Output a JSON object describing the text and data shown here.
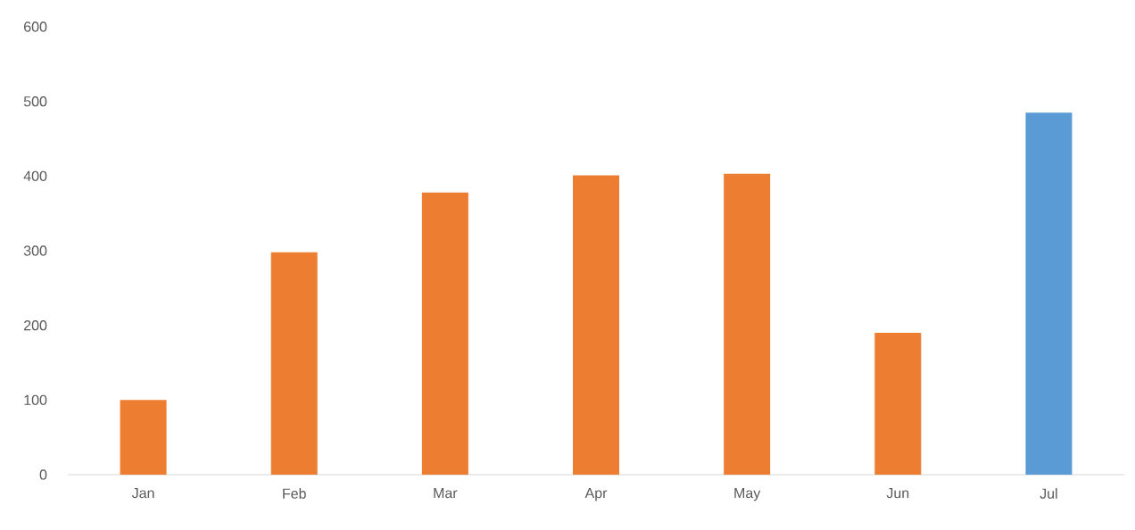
{
  "chart_data": {
    "type": "bar",
    "categories": [
      "Jan",
      "Feb",
      "Mar",
      "Apr",
      "May",
      "Jun",
      "Jul"
    ],
    "values": [
      100,
      298,
      378,
      401,
      403,
      190,
      485
    ],
    "colors": [
      "#ed7d31",
      "#ed7d31",
      "#ed7d31",
      "#ed7d31",
      "#ed7d31",
      "#ed7d31",
      "#5b9bd5"
    ],
    "ylim": [
      0,
      600
    ],
    "yticks": [
      0,
      100,
      200,
      300,
      400,
      500,
      600
    ]
  }
}
